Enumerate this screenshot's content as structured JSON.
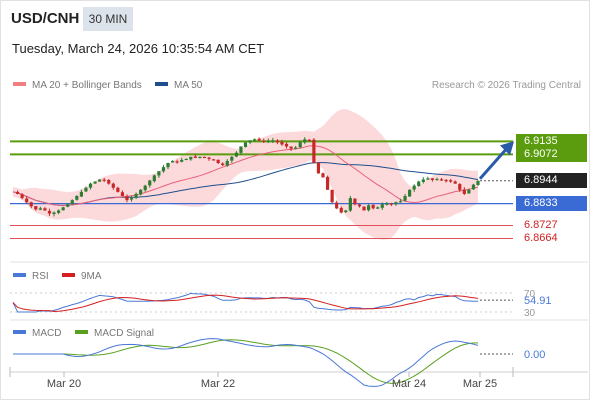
{
  "header": {
    "symbol": "USD/CNH",
    "timeframe": "30 MIN",
    "datetime": "Tuesday, March 24, 2026 10:35:54 AM CET"
  },
  "main_legend": {
    "ma20_label": "MA 20 + Bollinger Bands",
    "ma50_label": "MA 50",
    "credit": "Research © 2026 Trading Central"
  },
  "rsi_legend": {
    "rsi_label": "RSI",
    "ma_label": "9MA"
  },
  "macd_legend": {
    "macd_label": "MACD",
    "signal_label": "MACD Signal"
  },
  "colors": {
    "ma20": "#e9607a",
    "bands_fill": "#fbd3d6",
    "ma50": "#1f4e8c",
    "resistance": "#5a9c0d",
    "pivot": "#3a6bd4",
    "support": "#e0505a",
    "candle_up": "#2e7d32",
    "candle_down": "#c62828",
    "rsi": "#4a78d6",
    "rsi_ma": "#d42020",
    "macd": "#4a78d6",
    "macd_signal": "#5aa020",
    "arrow": "#2a5aa8"
  },
  "chart_data": [
    {
      "type": "candlestick",
      "title": "USD/CNH 30 MIN",
      "x_ticks": [
        "Mar 20",
        "Mar 22",
        "Mar 24",
        "Mar 25"
      ],
      "ylim": [
        6.855,
        6.935
      ],
      "levels": [
        {
          "label": "6.9135",
          "value": 6.9135,
          "kind": "resistance"
        },
        {
          "label": "6.9072",
          "value": 6.9072,
          "kind": "resistance"
        },
        {
          "label": "6.8944",
          "value": 6.8944,
          "kind": "last_price"
        },
        {
          "label": "6.8833",
          "value": 6.8833,
          "kind": "pivot"
        },
        {
          "label": "6.8727",
          "value": 6.8727,
          "kind": "support"
        },
        {
          "label": "6.8664",
          "value": 6.8664,
          "kind": "support"
        }
      ],
      "close": [
        6.889,
        6.888,
        6.886,
        6.884,
        6.882,
        6.8805,
        6.881,
        6.88,
        6.8785,
        6.879,
        6.88,
        6.8815,
        6.883,
        6.885,
        6.887,
        6.889,
        6.891,
        6.893,
        6.894,
        6.895,
        6.8945,
        6.893,
        6.891,
        6.889,
        6.887,
        6.885,
        6.886,
        6.888,
        6.89,
        6.892,
        6.8945,
        6.897,
        6.899,
        6.901,
        6.903,
        6.904,
        6.9035,
        6.9045,
        6.905,
        6.906,
        6.9055,
        6.906,
        6.9058,
        6.905,
        6.9045,
        6.903,
        6.902,
        6.904,
        6.906,
        6.908,
        6.911,
        6.913,
        6.914,
        6.9145,
        6.914,
        6.9135,
        6.9138,
        6.914,
        6.913,
        6.912,
        6.911,
        6.91,
        6.9105,
        6.913,
        6.9145,
        6.914,
        6.903,
        6.898,
        6.896,
        6.89,
        6.884,
        6.881,
        6.879,
        6.88,
        6.886,
        6.883,
        6.882,
        6.88,
        6.8825,
        6.881,
        6.8815,
        6.883,
        6.8835,
        6.883,
        6.884,
        6.8845,
        6.887,
        6.89,
        6.892,
        6.894,
        6.895,
        6.8955,
        6.8948,
        6.8952,
        6.895,
        6.8945,
        6.894,
        6.893,
        6.89,
        6.888,
        6.89,
        6.8925,
        6.8944
      ]
    },
    {
      "type": "line",
      "title": "RSI",
      "series_names": [
        "RSI",
        "9MA"
      ],
      "ylim": [
        30,
        70
      ],
      "y_ticks": [
        "70",
        "30"
      ],
      "last_value": "54.91"
    },
    {
      "type": "line",
      "title": "MACD",
      "series_names": [
        "MACD",
        "MACD Signal"
      ],
      "last_value": "0.00"
    }
  ]
}
